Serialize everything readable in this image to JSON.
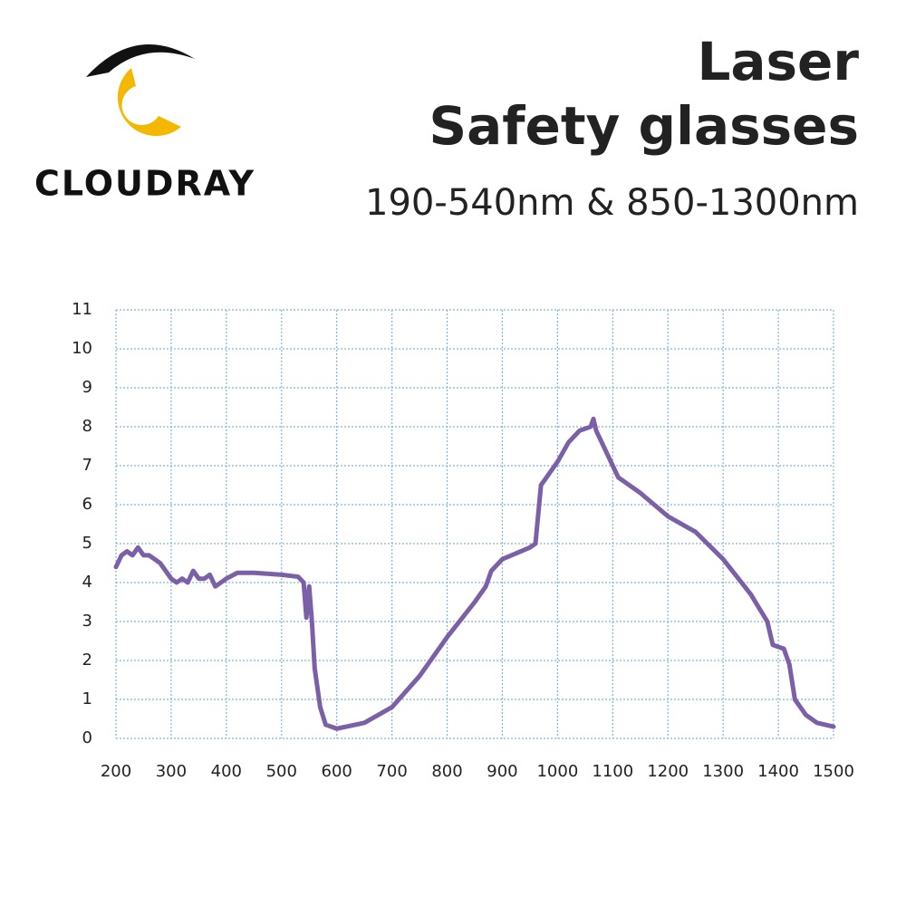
{
  "header": {
    "brand": "CLOUDRAY",
    "title_lines": [
      "Laser",
      "Safety glasses"
    ],
    "subtitle": "190-540nm & 850-1300nm"
  },
  "chart_data": {
    "type": "line",
    "grid": true,
    "xlim": [
      200,
      1500
    ],
    "xticks": [
      200,
      300,
      400,
      500,
      600,
      700,
      800,
      900,
      1000,
      1100,
      1200,
      1300,
      1400,
      1500
    ],
    "ylim": [
      0,
      11
    ],
    "yticks": [
      0,
      1,
      2,
      3,
      4,
      5,
      6,
      7,
      8,
      9,
      10,
      11
    ],
    "series": [
      {
        "color": "#7b60a8",
        "x": [
          200,
          210,
          220,
          230,
          240,
          250,
          260,
          270,
          280,
          290,
          300,
          310,
          320,
          330,
          340,
          350,
          360,
          370,
          380,
          390,
          400,
          420,
          450,
          500,
          530,
          540,
          545,
          550,
          555,
          560,
          570,
          580,
          600,
          650,
          700,
          750,
          800,
          850,
          870,
          880,
          900,
          950,
          960,
          970,
          980,
          1000,
          1020,
          1040,
          1060,
          1065,
          1070,
          1090,
          1110,
          1150,
          1200,
          1250,
          1300,
          1350,
          1380,
          1390,
          1410,
          1420,
          1430,
          1450,
          1470,
          1500
        ],
        "values": [
          4.4,
          4.7,
          4.8,
          4.7,
          4.9,
          4.7,
          4.7,
          4.6,
          4.5,
          4.3,
          4.1,
          4.0,
          4.1,
          4.0,
          4.3,
          4.1,
          4.1,
          4.2,
          3.9,
          4.0,
          4.1,
          4.25,
          4.25,
          4.2,
          4.15,
          4.0,
          3.1,
          3.9,
          3.0,
          1.8,
          0.8,
          0.35,
          0.25,
          0.4,
          0.8,
          1.6,
          2.6,
          3.5,
          3.9,
          4.3,
          4.6,
          4.9,
          5.0,
          6.5,
          6.7,
          7.1,
          7.6,
          7.9,
          8.0,
          8.2,
          7.9,
          7.3,
          6.7,
          6.3,
          5.7,
          5.3,
          4.6,
          3.7,
          3.0,
          2.4,
          2.3,
          1.9,
          1.0,
          0.6,
          0.4,
          0.3
        ]
      }
    ]
  }
}
